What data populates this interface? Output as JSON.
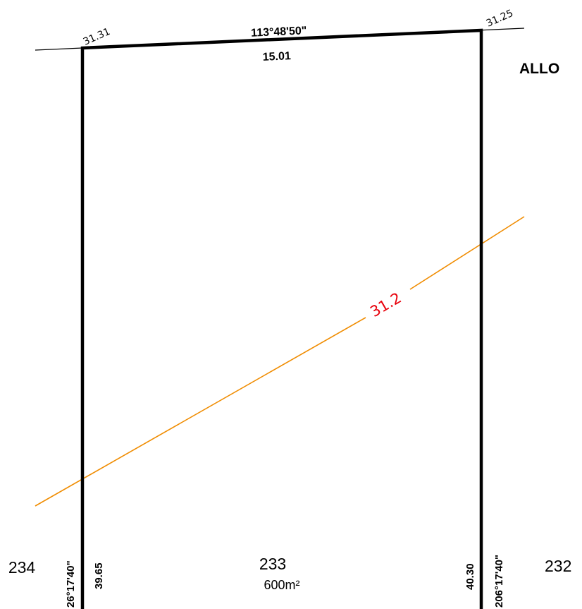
{
  "boundary": {
    "top_bearing": "113°48'50\"",
    "top_distance": "15.01",
    "left_bearing": "26°17'40\"",
    "left_distance": "39.65",
    "right_bearing": "206°17'40\"",
    "right_distance": "40.30"
  },
  "corner_levels": {
    "top_left": "31.31",
    "top_right": "31.25"
  },
  "contour": {
    "label": "31.2",
    "line_color": "#f08c00",
    "label_color": "#e8000b"
  },
  "lots": {
    "current": {
      "number": "233",
      "area": "600m²"
    },
    "left": {
      "number": "234"
    },
    "right": {
      "number": "232"
    }
  },
  "heading_partial": "ALLO"
}
